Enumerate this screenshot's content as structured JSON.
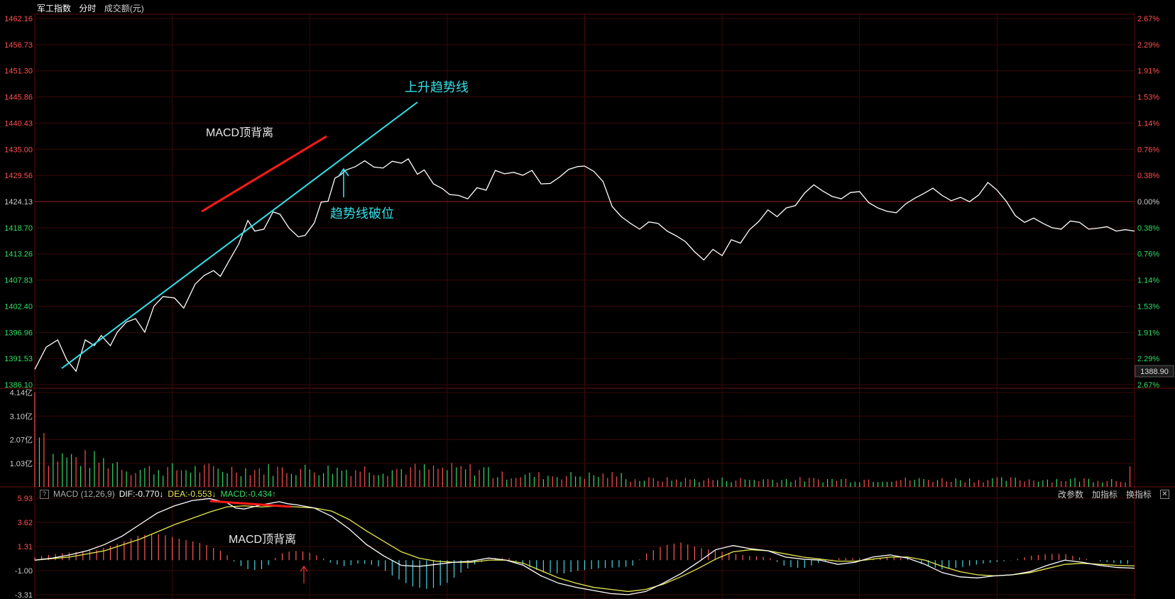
{
  "header": {
    "index_name": "军工指数",
    "tab_time": "分时",
    "volume_unit": "成交额(元)"
  },
  "price_axis": {
    "left_labels": [
      "1462.16",
      "1456.73",
      "1451.30",
      "1445.86",
      "1440.43",
      "1435.00",
      "1429.56",
      "1424.13",
      "1418.70",
      "1413.26",
      "1407.83",
      "1402.40",
      "1396.96",
      "1391.53",
      "1386.10"
    ],
    "right_labels": [
      "2.67%",
      "2.29%",
      "1.91%",
      "1.53%",
      "1.14%",
      "0.76%",
      "0.38%",
      "0.00%",
      "0.38%",
      "0.76%",
      "1.14%",
      "1.53%",
      "1.91%",
      "2.29%",
      "2.67%"
    ],
    "reference_price": 1424.13,
    "min": 1386.1,
    "max": 1462.16,
    "current_price_label": "1388.90"
  },
  "volume_axis": {
    "labels": [
      "4.14亿",
      "3.10亿",
      "2.07亿",
      "1.03亿"
    ],
    "max": 4.14
  },
  "macd_panel": {
    "help": "?",
    "name": "MACD (12,26,9)",
    "dif": "DIF:-0.770",
    "dea": "DEA:-0.553",
    "macd": "MACD:-0.434",
    "labels": [
      "5.93",
      "3.62",
      "1.31",
      "-1.00",
      "-3.31"
    ],
    "max": 5.93,
    "min": -3.31,
    "tools": [
      "改参数",
      "加指标",
      "换指标"
    ],
    "close": "✕"
  },
  "annotations": {
    "uptrend": "上升趋势线",
    "divergence_top": "MACD顶背离",
    "breakdown": "趋势线破位",
    "divergence_bottom": "MACD顶背离"
  },
  "colors": {
    "price_line": "#ffffff",
    "trend_line": "#33e0e8",
    "divergence": "#ff1a1a",
    "grid": "#3a0808",
    "up": "#ff5050",
    "down": "#33dd66",
    "dif_line": "#ffffff",
    "dea_line": "#e8e850",
    "hist_pos": "#ff5a5a",
    "hist_neg": "#44d8e0"
  },
  "chart_data": {
    "type": "line",
    "total_points": 240,
    "price": [
      [
        0,
        1389.3
      ],
      [
        5,
        1393.9
      ],
      [
        10,
        1395.4
      ],
      [
        14,
        1391.2
      ],
      [
        18,
        1388.9
      ],
      [
        22,
        1395.4
      ],
      [
        26,
        1394.2
      ],
      [
        29,
        1396.3
      ],
      [
        33,
        1394.2
      ],
      [
        36,
        1397.0
      ],
      [
        40,
        1399.1
      ],
      [
        44,
        1399.8
      ],
      [
        48,
        1397.0
      ],
      [
        52,
        1402.4
      ],
      [
        56,
        1404.4
      ],
      [
        61,
        1404.1
      ],
      [
        65,
        1402.0
      ],
      [
        70,
        1407.0
      ],
      [
        74,
        1408.8
      ],
      [
        78,
        1409.8
      ],
      [
        81,
        1408.6
      ],
      [
        85,
        1412.0
      ],
      [
        89,
        1415.3
      ],
      [
        93,
        1420.2
      ],
      [
        96,
        1418.0
      ],
      [
        100,
        1418.4
      ],
      [
        104,
        1422.0
      ],
      [
        107,
        1421.5
      ],
      [
        111,
        1418.6
      ],
      [
        115,
        1416.8
      ],
      [
        118,
        1417.1
      ],
      [
        122,
        1419.7
      ],
      [
        125,
        1424.0
      ],
      [
        128,
        1424.2
      ],
      [
        131,
        1429.0
      ],
      [
        133,
        1429.5
      ],
      [
        136,
        1430.7
      ],
      [
        140,
        1431.4
      ],
      [
        144,
        1432.6
      ],
      [
        148,
        1431.3
      ],
      [
        152,
        1431.1
      ],
      [
        156,
        1432.5
      ],
      [
        160,
        1432.1
      ],
      [
        163,
        1433.0
      ],
      [
        167,
        1429.8
      ],
      [
        170,
        1430.7
      ],
      [
        174,
        1427.8
      ],
      [
        178,
        1426.8
      ],
      [
        181,
        1425.6
      ],
      [
        185,
        1425.4
      ],
      [
        189,
        1424.7
      ],
      [
        193,
        1427.0
      ],
      [
        197,
        1426.5
      ],
      [
        201,
        1430.6
      ],
      [
        205,
        1429.9
      ],
      [
        209,
        1430.2
      ],
      [
        213,
        1429.6
      ],
      [
        217,
        1430.6
      ],
      [
        221,
        1427.8
      ],
      [
        225,
        1427.9
      ],
      [
        229,
        1429.2
      ],
      [
        233,
        1430.8
      ],
      [
        237,
        1431.4
      ],
      [
        240,
        1431.5
      ]
    ],
    "price_pm": [
      [
        0,
        1431.5
      ],
      [
        4,
        1430.4
      ],
      [
        8,
        1428.3
      ],
      [
        12,
        1423.1
      ],
      [
        16,
        1421.0
      ],
      [
        20,
        1419.6
      ],
      [
        24,
        1418.4
      ],
      [
        28,
        1419.9
      ],
      [
        32,
        1419.6
      ],
      [
        36,
        1418.0
      ],
      [
        40,
        1417.0
      ],
      [
        44,
        1415.8
      ],
      [
        48,
        1413.7
      ],
      [
        52,
        1412.0
      ],
      [
        56,
        1414.2
      ],
      [
        60,
        1412.9
      ],
      [
        64,
        1416.2
      ],
      [
        68,
        1415.5
      ],
      [
        72,
        1418.3
      ],
      [
        76,
        1420.0
      ],
      [
        80,
        1422.4
      ],
      [
        84,
        1421.0
      ],
      [
        88,
        1422.8
      ],
      [
        92,
        1423.3
      ],
      [
        96,
        1425.9
      ],
      [
        100,
        1427.6
      ],
      [
        104,
        1426.3
      ],
      [
        108,
        1425.2
      ],
      [
        112,
        1424.7
      ],
      [
        116,
        1426.0
      ],
      [
        120,
        1426.2
      ],
      [
        124,
        1423.9
      ],
      [
        128,
        1422.8
      ],
      [
        132,
        1422.1
      ],
      [
        136,
        1421.8
      ],
      [
        140,
        1423.6
      ],
      [
        144,
        1424.8
      ],
      [
        148,
        1425.8
      ],
      [
        152,
        1426.9
      ],
      [
        156,
        1425.4
      ],
      [
        160,
        1424.3
      ],
      [
        164,
        1425.0
      ],
      [
        168,
        1424.1
      ],
      [
        172,
        1425.5
      ],
      [
        176,
        1428.1
      ],
      [
        180,
        1426.5
      ],
      [
        184,
        1424.2
      ],
      [
        188,
        1421.2
      ],
      [
        192,
        1419.8
      ],
      [
        196,
        1420.7
      ],
      [
        200,
        1419.6
      ],
      [
        204,
        1418.7
      ],
      [
        208,
        1418.4
      ],
      [
        212,
        1420.1
      ],
      [
        216,
        1419.8
      ],
      [
        220,
        1418.4
      ],
      [
        224,
        1418.6
      ],
      [
        228,
        1418.9
      ],
      [
        232,
        1418.0
      ],
      [
        236,
        1418.3
      ],
      [
        240,
        1418.0
      ]
    ],
    "macd_dif": [
      [
        0,
        0.0
      ],
      [
        10,
        0.2
      ],
      [
        20,
        0.5
      ],
      [
        30,
        0.9
      ],
      [
        40,
        1.5
      ],
      [
        50,
        2.3
      ],
      [
        60,
        3.4
      ],
      [
        70,
        4.5
      ],
      [
        80,
        5.2
      ],
      [
        90,
        5.7
      ],
      [
        100,
        5.9
      ],
      [
        110,
        5.5
      ],
      [
        115,
        5.0
      ],
      [
        120,
        4.9
      ],
      [
        130,
        5.3
      ],
      [
        140,
        5.6
      ],
      [
        145,
        5.4
      ],
      [
        150,
        5.3
      ],
      [
        160,
        5.0
      ],
      [
        170,
        4.2
      ],
      [
        180,
        3.0
      ],
      [
        190,
        1.5
      ],
      [
        200,
        0.4
      ],
      [
        210,
        -0.5
      ],
      [
        220,
        -0.6
      ],
      [
        230,
        -0.4
      ],
      [
        240,
        -0.2
      ],
      [
        250,
        -0.1
      ],
      [
        260,
        0.2
      ],
      [
        270,
        0.0
      ],
      [
        280,
        -0.5
      ],
      [
        290,
        -1.5
      ],
      [
        300,
        -2.2
      ],
      [
        310,
        -2.6
      ],
      [
        320,
        -2.9
      ],
      [
        330,
        -3.2
      ],
      [
        340,
        -3.3
      ],
      [
        350,
        -3.0
      ],
      [
        360,
        -2.2
      ],
      [
        370,
        -1.3
      ],
      [
        380,
        -0.2
      ],
      [
        390,
        1.0
      ],
      [
        400,
        1.4
      ],
      [
        410,
        1.1
      ],
      [
        420,
        0.9
      ],
      [
        430,
        0.3
      ],
      [
        440,
        0.1
      ],
      [
        450,
        0.0
      ],
      [
        460,
        -0.4
      ],
      [
        470,
        -0.2
      ],
      [
        480,
        0.3
      ],
      [
        490,
        0.5
      ],
      [
        500,
        0.2
      ],
      [
        510,
        -0.4
      ],
      [
        520,
        -1.2
      ],
      [
        530,
        -1.6
      ],
      [
        540,
        -1.7
      ],
      [
        550,
        -1.5
      ],
      [
        560,
        -1.4
      ],
      [
        570,
        -1.1
      ],
      [
        580,
        -0.5
      ],
      [
        590,
        0.0
      ],
      [
        600,
        -0.2
      ],
      [
        610,
        -0.5
      ],
      [
        620,
        -0.7
      ],
      [
        630,
        -0.77
      ]
    ],
    "macd_dea": [
      [
        0,
        0.0
      ],
      [
        20,
        0.3
      ],
      [
        40,
        0.9
      ],
      [
        60,
        2.0
      ],
      [
        80,
        3.4
      ],
      [
        100,
        4.6
      ],
      [
        110,
        5.1
      ],
      [
        120,
        5.2
      ],
      [
        130,
        5.1
      ],
      [
        140,
        5.2
      ],
      [
        150,
        5.1
      ],
      [
        160,
        5.0
      ],
      [
        170,
        4.7
      ],
      [
        180,
        3.9
      ],
      [
        190,
        2.8
      ],
      [
        200,
        1.8
      ],
      [
        210,
        0.8
      ],
      [
        220,
        0.2
      ],
      [
        230,
        -0.1
      ],
      [
        240,
        -0.2
      ],
      [
        250,
        -0.2
      ],
      [
        260,
        0.0
      ],
      [
        270,
        0.0
      ],
      [
        280,
        -0.3
      ],
      [
        290,
        -1.0
      ],
      [
        300,
        -1.7
      ],
      [
        310,
        -2.2
      ],
      [
        320,
        -2.6
      ],
      [
        330,
        -2.8
      ],
      [
        340,
        -3.0
      ],
      [
        350,
        -2.8
      ],
      [
        360,
        -2.3
      ],
      [
        370,
        -1.6
      ],
      [
        380,
        -0.8
      ],
      [
        390,
        0.1
      ],
      [
        400,
        0.8
      ],
      [
        410,
        1.0
      ],
      [
        420,
        0.9
      ],
      [
        430,
        0.6
      ],
      [
        440,
        0.3
      ],
      [
        450,
        0.1
      ],
      [
        460,
        -0.1
      ],
      [
        470,
        -0.1
      ],
      [
        480,
        0.1
      ],
      [
        490,
        0.3
      ],
      [
        500,
        0.3
      ],
      [
        510,
        0.0
      ],
      [
        520,
        -0.6
      ],
      [
        530,
        -1.1
      ],
      [
        540,
        -1.4
      ],
      [
        550,
        -1.5
      ],
      [
        560,
        -1.4
      ],
      [
        570,
        -1.2
      ],
      [
        580,
        -0.8
      ],
      [
        590,
        -0.4
      ],
      [
        600,
        -0.3
      ],
      [
        610,
        -0.4
      ],
      [
        620,
        -0.5
      ],
      [
        630,
        -0.55
      ]
    ],
    "macd_hist_segments": [
      [
        0,
        0.3
      ],
      [
        12,
        0.6
      ],
      [
        24,
        0.8
      ],
      [
        36,
        1.0
      ],
      [
        48,
        1.6
      ],
      [
        60,
        2.4
      ],
      [
        72,
        2.5
      ],
      [
        84,
        2.0
      ],
      [
        96,
        1.6
      ],
      [
        108,
        0.8
      ],
      [
        116,
        -0.4
      ],
      [
        124,
        -1.0
      ],
      [
        132,
        -0.8
      ],
      [
        140,
        0.6
      ],
      [
        148,
        0.9
      ],
      [
        156,
        0.8
      ],
      [
        164,
        0.3
      ],
      [
        170,
        -0.3
      ],
      [
        178,
        -0.6
      ],
      [
        186,
        -0.3
      ],
      [
        196,
        -0.5
      ],
      [
        206,
        -1.6
      ],
      [
        216,
        -2.5
      ],
      [
        226,
        -2.8
      ],
      [
        236,
        -2.2
      ],
      [
        244,
        -1.2
      ],
      [
        252,
        -0.4
      ],
      [
        262,
        0.2
      ],
      [
        272,
        0.2
      ],
      [
        282,
        -0.6
      ],
      [
        292,
        -1.2
      ],
      [
        302,
        -1.3
      ],
      [
        312,
        -1.0
      ],
      [
        322,
        -0.8
      ],
      [
        332,
        -0.7
      ],
      [
        342,
        -0.6
      ],
      [
        350,
        0.6
      ],
      [
        360,
        1.4
      ],
      [
        370,
        1.7
      ],
      [
        380,
        1.2
      ],
      [
        390,
        0.9
      ],
      [
        400,
        0.6
      ],
      [
        410,
        0.4
      ],
      [
        420,
        0.3
      ],
      [
        430,
        -0.6
      ],
      [
        440,
        -0.8
      ],
      [
        450,
        -0.2
      ],
      [
        460,
        0.2
      ],
      [
        470,
        0.2
      ],
      [
        480,
        0.1
      ],
      [
        490,
        0.3
      ],
      [
        500,
        0.2
      ],
      [
        510,
        -0.5
      ],
      [
        520,
        -0.9
      ],
      [
        530,
        -0.7
      ],
      [
        540,
        -0.4
      ],
      [
        550,
        -0.2
      ],
      [
        560,
        0.0
      ],
      [
        570,
        0.4
      ],
      [
        580,
        0.6
      ],
      [
        590,
        0.6
      ],
      [
        600,
        0.2
      ],
      [
        610,
        -0.1
      ],
      [
        620,
        -0.3
      ],
      [
        630,
        -0.4
      ]
    ]
  }
}
